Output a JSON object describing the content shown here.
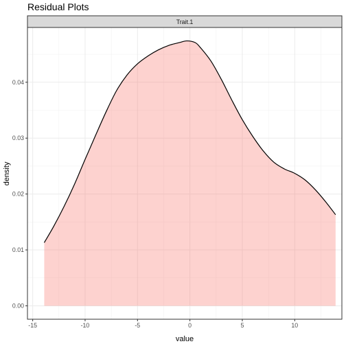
{
  "chart_data": {
    "type": "area",
    "title": "Residual Plots",
    "facet_label": "Trait.1",
    "xlabel": "value",
    "ylabel": "density",
    "xlim": [
      -15.5,
      14.5
    ],
    "ylim": [
      -0.0024,
      0.0498
    ],
    "x_ticks": [
      -15,
      -10,
      -5,
      0,
      5,
      10
    ],
    "x_tick_labels": [
      "-15",
      "-10",
      "-5",
      "0",
      "5",
      "10"
    ],
    "y_ticks": [
      0.0,
      0.01,
      0.02,
      0.03,
      0.04
    ],
    "y_tick_labels": [
      "0.00",
      "0.01",
      "0.02",
      "0.03",
      "0.04"
    ],
    "grid": true,
    "legend": "none",
    "fill_color": "#F8766D",
    "fill_opacity": 0.33,
    "line_color": "#000000",
    "strip_fill": "#D9D9D9",
    "series": [
      {
        "x": [
          -13.9,
          -13.0,
          -12.0,
          -11.0,
          -10.0,
          -9.0,
          -8.0,
          -7.0,
          -6.0,
          -5.0,
          -4.0,
          -3.0,
          -2.0,
          -1.0,
          -0.3,
          0.5,
          1.0,
          2.0,
          3.0,
          4.0,
          5.0,
          6.0,
          7.0,
          8.0,
          9.0,
          10.0,
          11.0,
          12.0,
          13.0,
          13.9
        ],
        "y": [
          0.0113,
          0.0142,
          0.0178,
          0.0218,
          0.0262,
          0.0305,
          0.0347,
          0.0385,
          0.0413,
          0.0433,
          0.0447,
          0.0458,
          0.0466,
          0.0471,
          0.0474,
          0.0471,
          0.0462,
          0.0438,
          0.0405,
          0.0368,
          0.0333,
          0.0303,
          0.0277,
          0.0257,
          0.0245,
          0.0237,
          0.0225,
          0.0207,
          0.0185,
          0.0163
        ]
      }
    ]
  }
}
